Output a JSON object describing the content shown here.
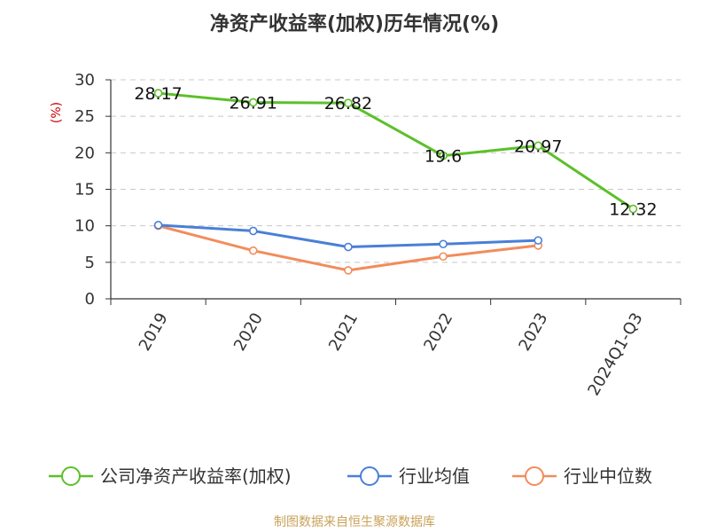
{
  "chart_data": {
    "type": "line",
    "title": "净资产收益率(加权)历年情况(%)",
    "ylabel": "(%)",
    "categories": [
      "2019",
      "2020",
      "2021",
      "2022",
      "2023",
      "2024Q1-Q3"
    ],
    "ylim": [
      0,
      30
    ],
    "yticks": [
      0,
      5,
      10,
      15,
      20,
      25,
      30
    ],
    "grid": "horizontal-dashed",
    "legend_position": "bottom",
    "series": [
      {
        "name": "公司净资产收益率(加权)",
        "color": "#5cc02a",
        "values": [
          28.17,
          26.91,
          26.82,
          19.6,
          20.97,
          12.32
        ],
        "labels": [
          "28.17",
          "26.91",
          "26.82",
          "19.6",
          "20.97",
          "12.32"
        ]
      },
      {
        "name": "行业均值",
        "color": "#4a7fd8",
        "values": [
          10.1,
          9.3,
          7.1,
          7.5,
          8.0,
          null
        ]
      },
      {
        "name": "行业中位数",
        "color": "#f28c5a",
        "values": [
          10.0,
          6.6,
          3.9,
          5.8,
          7.3,
          null
        ]
      }
    ]
  },
  "source": "制图数据来自恒生聚源数据库"
}
